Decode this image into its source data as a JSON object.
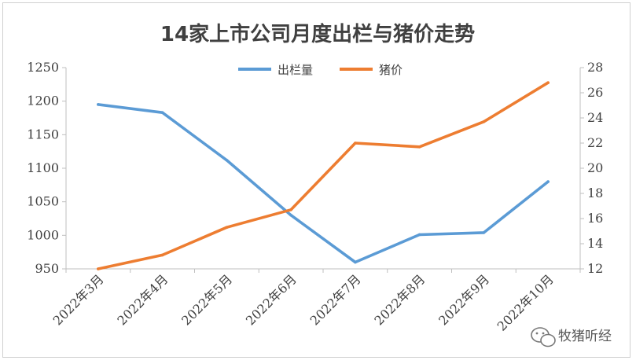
{
  "watermark": {
    "text": "牧猪听经",
    "icon": "wechat-icon"
  },
  "chart_data": {
    "type": "line",
    "title": "14家上市公司月度出栏与猪价走势",
    "categories": [
      "2022年3月",
      "2022年4月",
      "2022年5月",
      "2022年6月",
      "2022年7月",
      "2022年8月",
      "2022年9月",
      "2022年10月"
    ],
    "series": [
      {
        "name": "出栏量",
        "axis": "left",
        "color": "#5B9BD5",
        "values": [
          1195,
          1183,
          1112,
          1030,
          960,
          1001,
          1004,
          1080
        ]
      },
      {
        "name": "猪价",
        "axis": "right",
        "color": "#ED7D31",
        "values": [
          12.0,
          13.1,
          15.3,
          16.7,
          22.0,
          21.7,
          23.7,
          26.8
        ]
      }
    ],
    "y_left": {
      "min": 950,
      "max": 1250,
      "ticks": [
        950,
        1000,
        1050,
        1100,
        1150,
        1200,
        1250
      ]
    },
    "y_right": {
      "min": 12,
      "max": 28,
      "ticks": [
        12,
        14,
        16,
        18,
        20,
        22,
        24,
        26,
        28
      ]
    },
    "legend_position": "top-center",
    "grid": false
  }
}
